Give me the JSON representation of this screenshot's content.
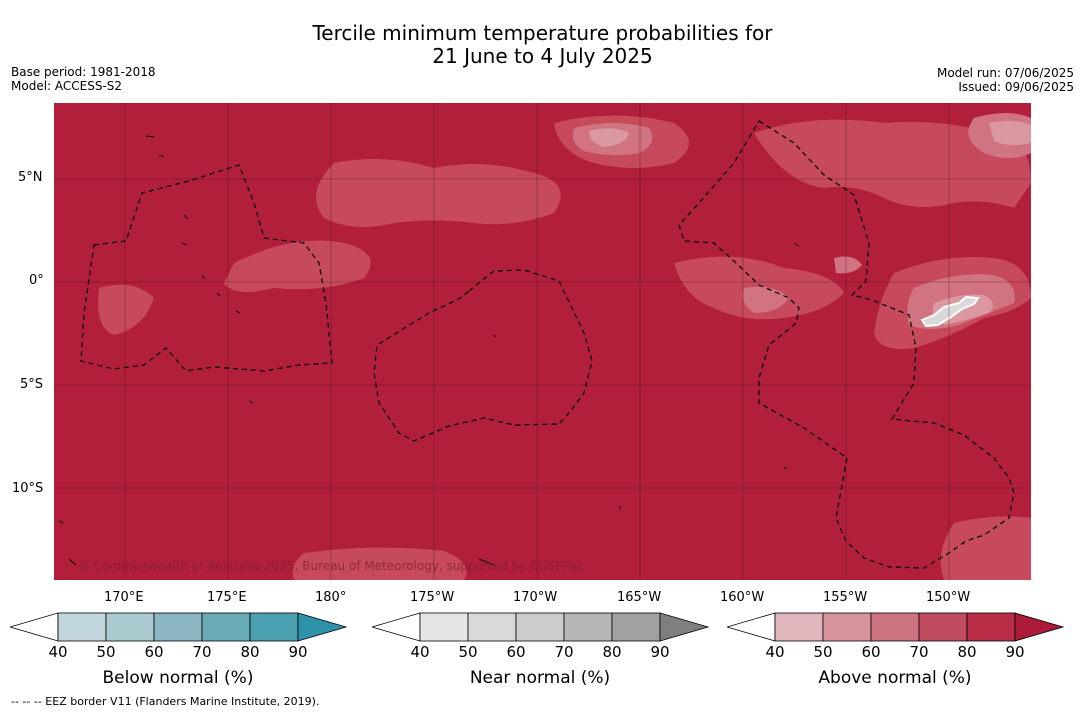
{
  "title": {
    "line1": "Tercile minimum temperature probabilities for",
    "line2": "21 June to 4 July 2025"
  },
  "meta_left": {
    "base_period": "Base period: 1981-2018",
    "model": "Model: ACCESS-S2"
  },
  "meta_right": {
    "model_run": "Model run: 07/06/2025",
    "issued": "Issued: 09/06/2025"
  },
  "map": {
    "lat_labels": [
      "5°N",
      "0°",
      "5°S",
      "10°S"
    ],
    "lon_labels": [
      "170°E",
      "175°E",
      "180°",
      "175°W",
      "170°W",
      "165°W",
      "160°W",
      "155°W",
      "150°W"
    ],
    "copyright": "© Commonwealth of Australia 2025, Bureau of Meteorology, supported by COSPPac",
    "colors": {
      "ocean_fill": "#b21f3b",
      "above_70": "#c7495c",
      "above_60": "#d17381",
      "above_50": "#dc98a1",
      "near_normal": "#d9d9d9"
    }
  },
  "colorbars": [
    {
      "title": "Below normal (%)",
      "ticks": [
        "40",
        "50",
        "60",
        "70",
        "80",
        "90"
      ],
      "colors": [
        "#ffffff",
        "#c0d6dc",
        "#a9c9cf",
        "#8ab6c2",
        "#6aabb8",
        "#4aa0b0",
        "#2e93a8"
      ]
    },
    {
      "title": "Near normal (%)",
      "ticks": [
        "40",
        "50",
        "60",
        "70",
        "80",
        "90"
      ],
      "colors": [
        "#ffffff",
        "#e6e6e6",
        "#d9d9d9",
        "#cccccc",
        "#b5b5b5",
        "#a1a1a1",
        "#7f7f7f"
      ]
    },
    {
      "title": "Above normal (%)",
      "ticks": [
        "40",
        "50",
        "60",
        "70",
        "80",
        "90"
      ],
      "colors": [
        "#ffffff",
        "#e0b6bc",
        "#d7949d",
        "#cb7480",
        "#c04c5f",
        "#b82d46",
        "#ac1b37"
      ]
    }
  ],
  "footnote": "--  --  -- EEZ border V11 (Flanders Marine Institute, 2019)."
}
